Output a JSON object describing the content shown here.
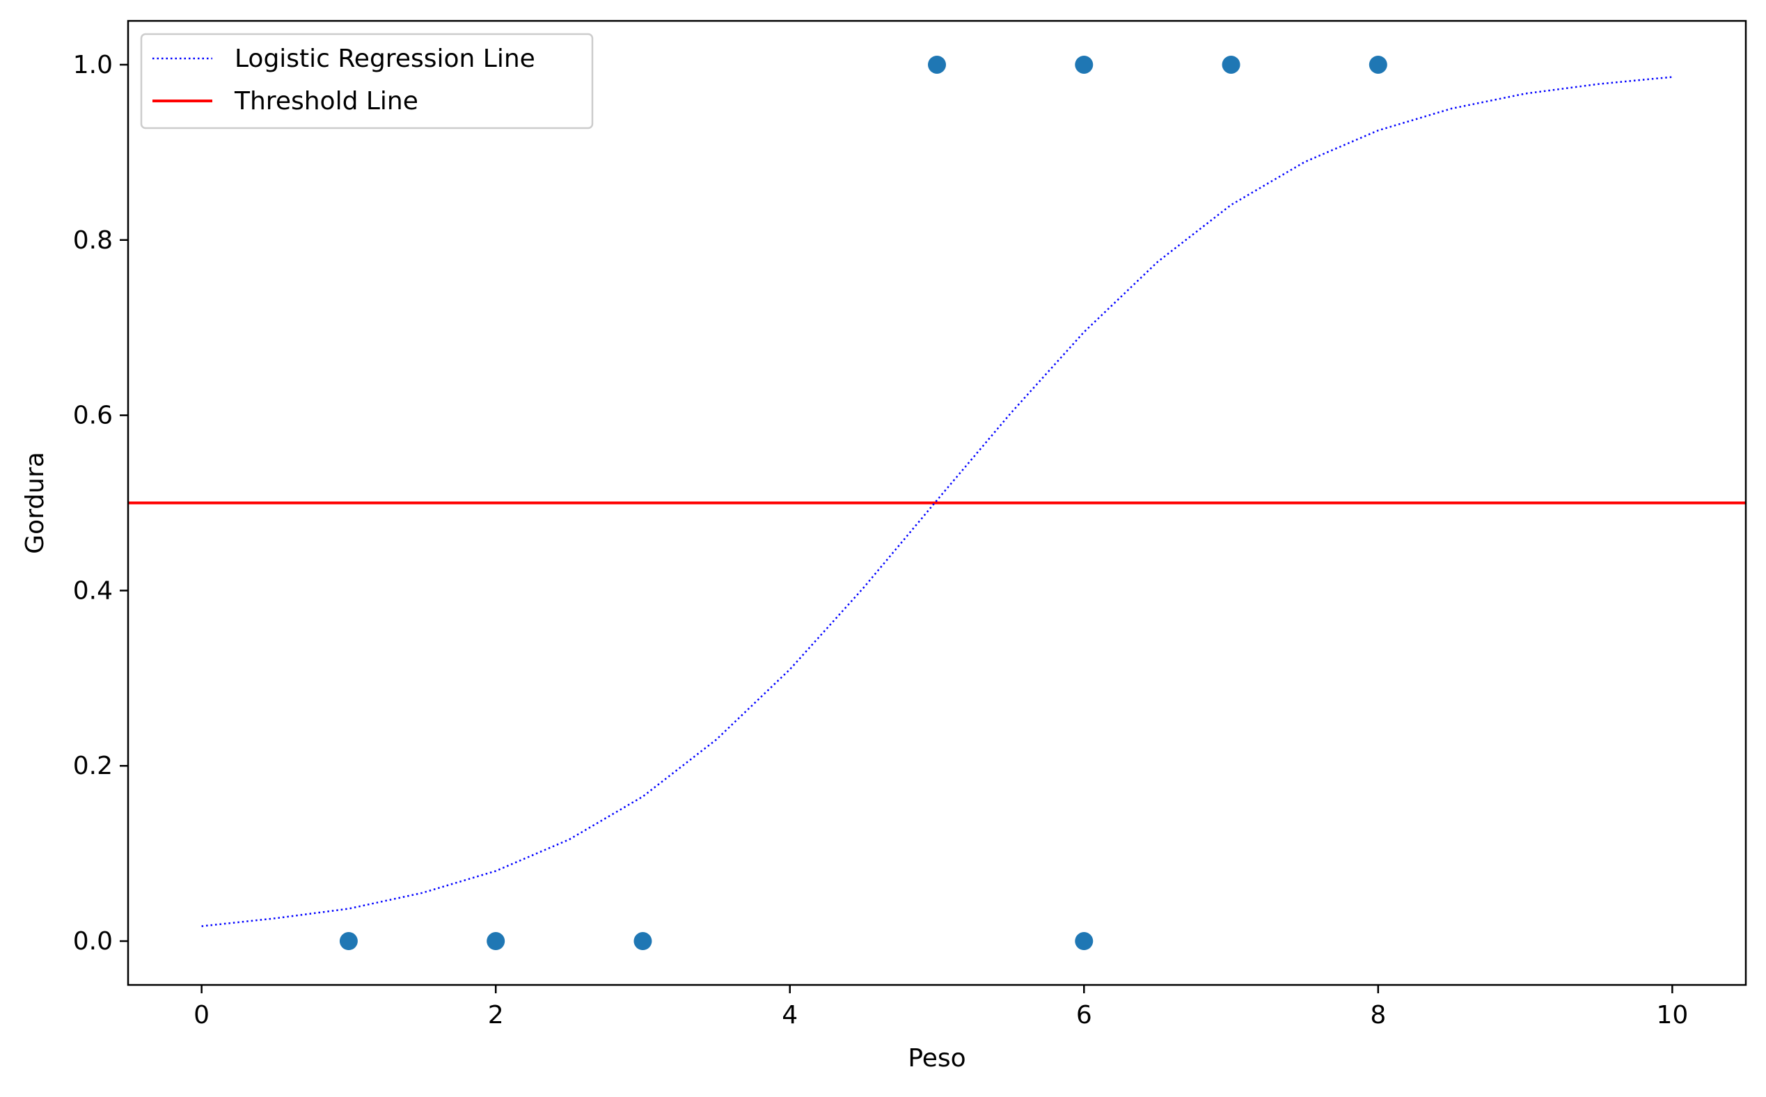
{
  "chart_data": {
    "type": "scatter",
    "title": "",
    "xlabel": "Peso",
    "ylabel": "Gordura",
    "xlim": [
      -0.5,
      10.5
    ],
    "ylim": [
      -0.05,
      1.05
    ],
    "xticks": [
      0,
      2,
      4,
      6,
      8,
      10
    ],
    "xtick_labels": [
      "0",
      "2",
      "4",
      "6",
      "8",
      "10"
    ],
    "yticks": [
      0.0,
      0.2,
      0.4,
      0.6,
      0.8,
      1.0
    ],
    "ytick_labels": [
      "0.0",
      "0.2",
      "0.4",
      "0.6",
      "0.8",
      "1.0"
    ],
    "grid": false,
    "legend_position": "top-left",
    "scatter": {
      "color": "#1f77b4",
      "points": [
        {
          "x": 1,
          "y": 0
        },
        {
          "x": 2,
          "y": 0
        },
        {
          "x": 3,
          "y": 0
        },
        {
          "x": 6,
          "y": 0
        },
        {
          "x": 5,
          "y": 1
        },
        {
          "x": 6,
          "y": 1
        },
        {
          "x": 7,
          "y": 1
        },
        {
          "x": 8,
          "y": 1
        }
      ]
    },
    "series": [
      {
        "name": "Logistic Regression Line",
        "style": "dotted",
        "color": "#0000ff",
        "x": [
          0,
          0.5,
          1,
          1.5,
          2,
          2.5,
          3,
          3.5,
          4,
          4.5,
          5,
          5.5,
          6,
          6.5,
          7,
          7.5,
          8,
          8.5,
          9,
          9.5,
          10
        ],
        "y": [
          0.017,
          0.026,
          0.037,
          0.055,
          0.08,
          0.116,
          0.165,
          0.23,
          0.31,
          0.403,
          0.503,
          0.602,
          0.695,
          0.775,
          0.84,
          0.889,
          0.925,
          0.95,
          0.967,
          0.978,
          0.986
        ]
      },
      {
        "name": "Threshold Line",
        "style": "solid",
        "color": "#ff0000",
        "y": 0.5
      }
    ]
  }
}
